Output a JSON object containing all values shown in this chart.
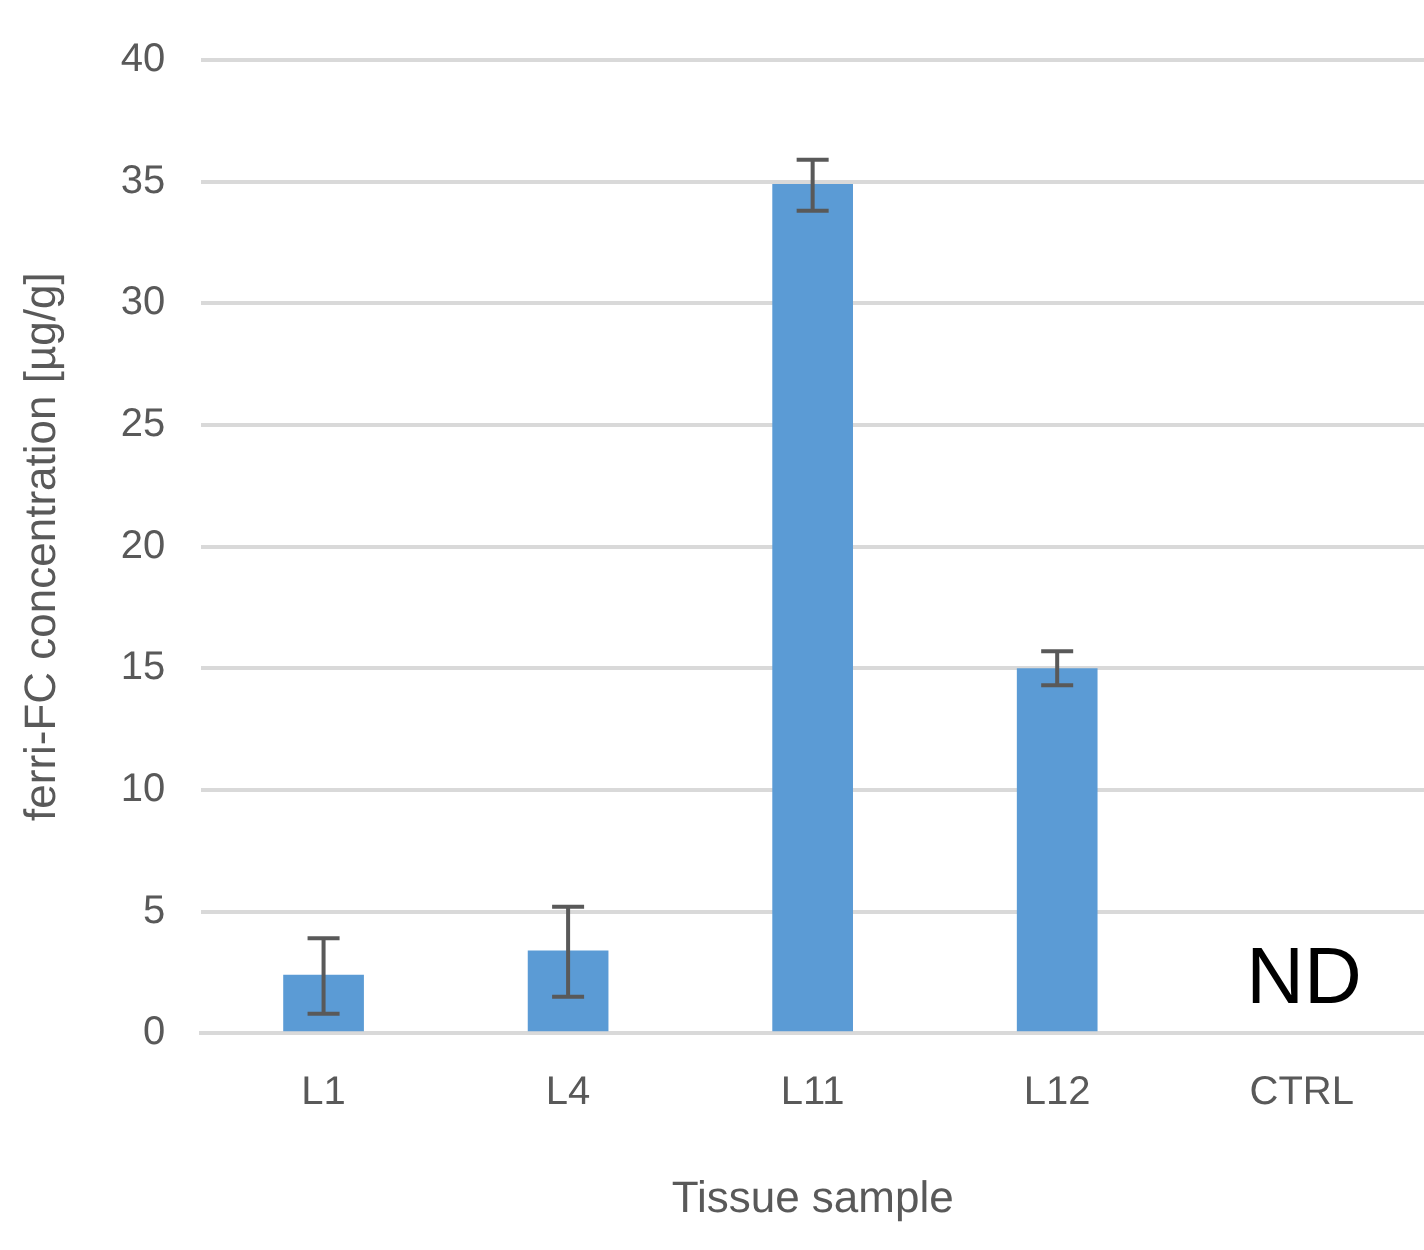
{
  "chart_data": {
    "type": "bar",
    "xlabel": "Tissue sample",
    "ylabel": "ferri-FC concentration [µg/g]",
    "categories": [
      "L1",
      "L4",
      "L11",
      "L12",
      "CTRL"
    ],
    "values": [
      2.4,
      3.4,
      34.9,
      15.0,
      null
    ],
    "errors": [
      [
        0.8,
        3.9
      ],
      [
        1.5,
        5.2
      ],
      [
        33.8,
        35.9
      ],
      [
        14.3,
        15.7
      ],
      null
    ],
    "color": "#5b9bd5",
    "ylim": [
      0,
      40
    ],
    "yticks": [
      0,
      5,
      10,
      15,
      20,
      25,
      30,
      35,
      40
    ],
    "grid": "y",
    "annotations": [
      "ND"
    ]
  }
}
